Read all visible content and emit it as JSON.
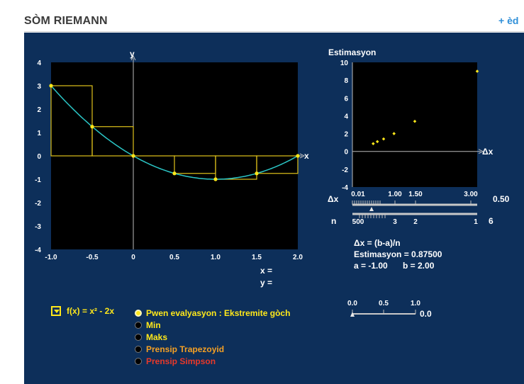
{
  "header": {
    "title": "SÒM RIEMANN",
    "help": "+ èd"
  },
  "colors": {
    "panel": "#0d2f5a",
    "curve": "#2bc6c6",
    "boxes": "#e0c21a",
    "points": "#ffe81a"
  },
  "main_plot": {
    "x_ticks": [
      "-1.0",
      "-0.5",
      "0",
      "0.5",
      "1.0",
      "1.5",
      "2.0"
    ],
    "y_ticks": [
      "4",
      "3",
      "2",
      "1",
      "0",
      "-1",
      "-2",
      "-3",
      "-4"
    ],
    "x_axis_label": "x",
    "y_axis_label": "y",
    "readout_x": "x =",
    "readout_y": "y ="
  },
  "chart_data": [
    {
      "type": "line",
      "series": [
        {
          "name": "f(x) = x² - 2x",
          "x": [
            -1.0,
            -0.5,
            0,
            0.5,
            1.0,
            1.5,
            2.0
          ],
          "y": [
            3,
            1.25,
            0,
            -0.75,
            -1,
            -0.75,
            0
          ]
        }
      ],
      "rectangles": [
        {
          "x0": -1.0,
          "x1": -0.5,
          "height": 3
        },
        {
          "x0": -0.5,
          "x1": 0,
          "height": 1.25
        },
        {
          "x0": 0,
          "x1": 0.5,
          "height": 0
        },
        {
          "x0": 0.5,
          "x1": 1.0,
          "height": -0.75
        },
        {
          "x0": 1.0,
          "x1": 1.5,
          "height": -1
        },
        {
          "x0": 1.5,
          "x1": 2.0,
          "height": -0.75
        }
      ],
      "xlim": [
        -1,
        2
      ],
      "ylim": [
        -4,
        4
      ],
      "xlabel": "x",
      "ylabel": "y"
    },
    {
      "type": "scatter",
      "title": "Estimasyon",
      "x_ticks": [
        "0.01",
        "1.00",
        "1.50",
        "3.00"
      ],
      "y_ticks": [
        "10",
        "8",
        "6",
        "4",
        "2",
        "0",
        "-2",
        "-4"
      ],
      "xlabel": "Δx",
      "points": [
        {
          "x": 0.5,
          "y": 0.875
        },
        {
          "x": 0.6,
          "y": 1.1
        },
        {
          "x": 0.75,
          "y": 1.4
        },
        {
          "x": 1.0,
          "y": 2.0
        },
        {
          "x": 1.5,
          "y": 3.375
        },
        {
          "x": 3.0,
          "y": 9.0
        }
      ],
      "xlim": [
        0,
        3
      ],
      "ylim": [
        -4,
        10
      ]
    }
  ],
  "dx_slider": {
    "label": "Δx",
    "ticks": [
      "0.01",
      "1.00",
      "1.50",
      "3.00"
    ],
    "value": "0.50"
  },
  "n_slider": {
    "label": "n",
    "ticks": [
      "500",
      "3",
      "2",
      "1"
    ],
    "value": "6"
  },
  "info": {
    "formula": "Δx = (b-a)/n",
    "estimate": "Estimasyon = 0.87500",
    "a": "a = -1.00",
    "b": "b = 2.00"
  },
  "zoom_slider": {
    "ticks": [
      "0.0",
      "0.5",
      "1.0"
    ],
    "value": "0.0",
    "level": 0.0
  },
  "function_select": {
    "label": "f(x) = x² - 2x"
  },
  "options": [
    {
      "label": "Pwen evalyasyon : Ekstremite gòch",
      "color": "#ffe81a",
      "selected": true
    },
    {
      "label": "Min",
      "color": "#ffe81a",
      "selected": false
    },
    {
      "label": "Maks",
      "color": "#ffe81a",
      "selected": false
    },
    {
      "label": "Prensip Trapezoyid",
      "color": "#f5a024",
      "selected": false
    },
    {
      "label": "Prensip Simpson",
      "color": "#e8392a",
      "selected": false
    }
  ]
}
